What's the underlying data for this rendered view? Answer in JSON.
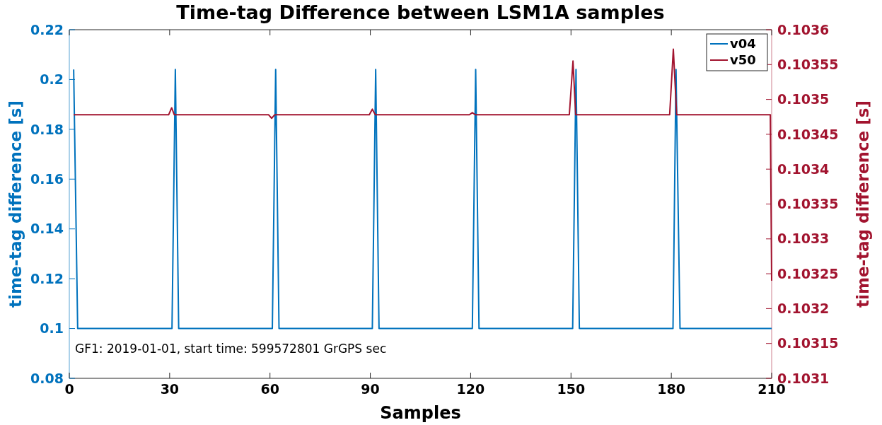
{
  "chart_data": {
    "type": "line",
    "title": "Time-tag Difference between LSM1A samples",
    "xlabel": "Samples",
    "ylabel": "time-tag difference [s]",
    "y2label": "time-tag difference [s]",
    "annotations": [
      "GF1: 2019-01-01, start time: 599572801 GrGPS sec"
    ],
    "xlim": [
      0,
      210
    ],
    "xticks": [
      0,
      30,
      60,
      90,
      120,
      150,
      180,
      210
    ],
    "ylim": [
      0.08,
      0.22
    ],
    "yticks": [
      0.08,
      0.1,
      0.12,
      0.14,
      0.16,
      0.18,
      0.2,
      0.22
    ],
    "y2lim": [
      0.1031,
      0.1036
    ],
    "y2ticks": [
      0.1031,
      0.10315,
      0.1032,
      0.10325,
      0.1033,
      0.10335,
      0.1034,
      0.10345,
      0.1035,
      0.10355,
      0.1036
    ],
    "grid": false,
    "legend": "top right",
    "line_style": "solid",
    "marker": "none",
    "series": [
      {
        "name": "v04",
        "color": "#0072bd",
        "x": [
          1.3,
          2.5,
          30.7,
          31.7,
          32.7,
          60.7,
          61.7,
          62.7,
          90.6,
          91.6,
          92.6,
          120.5,
          121.5,
          122.5,
          150.5,
          151.5,
          152.5,
          180.5,
          181.4,
          182.6,
          210
        ],
        "values": [
          0.204,
          0.1,
          0.1,
          0.204,
          0.1,
          0.1,
          0.204,
          0.1,
          0.1,
          0.204,
          0.1,
          0.1,
          0.204,
          0.1,
          0.1,
          0.204,
          0.1,
          0.1,
          0.204,
          0.1,
          0.1
        ]
      },
      {
        "name": "v50",
        "color": "#a2142f",
        "axis": "y2",
        "x": [
          1.3,
          29.7,
          30.6,
          31.4,
          59.6,
          60.5,
          61.4,
          89.7,
          90.6,
          91.5,
          119.6,
          120.5,
          121.4,
          149.5,
          150.6,
          151.4,
          179.5,
          180.6,
          181.6,
          209.6,
          210
        ],
        "values": [
          0.103478,
          0.103478,
          0.103488,
          0.103478,
          0.103478,
          0.103473,
          0.103478,
          0.103478,
          0.103486,
          0.103478,
          0.103478,
          0.103481,
          0.103478,
          0.103478,
          0.103555,
          0.103478,
          0.103478,
          0.103572,
          0.103478,
          0.103478,
          0.10324
        ]
      }
    ]
  }
}
